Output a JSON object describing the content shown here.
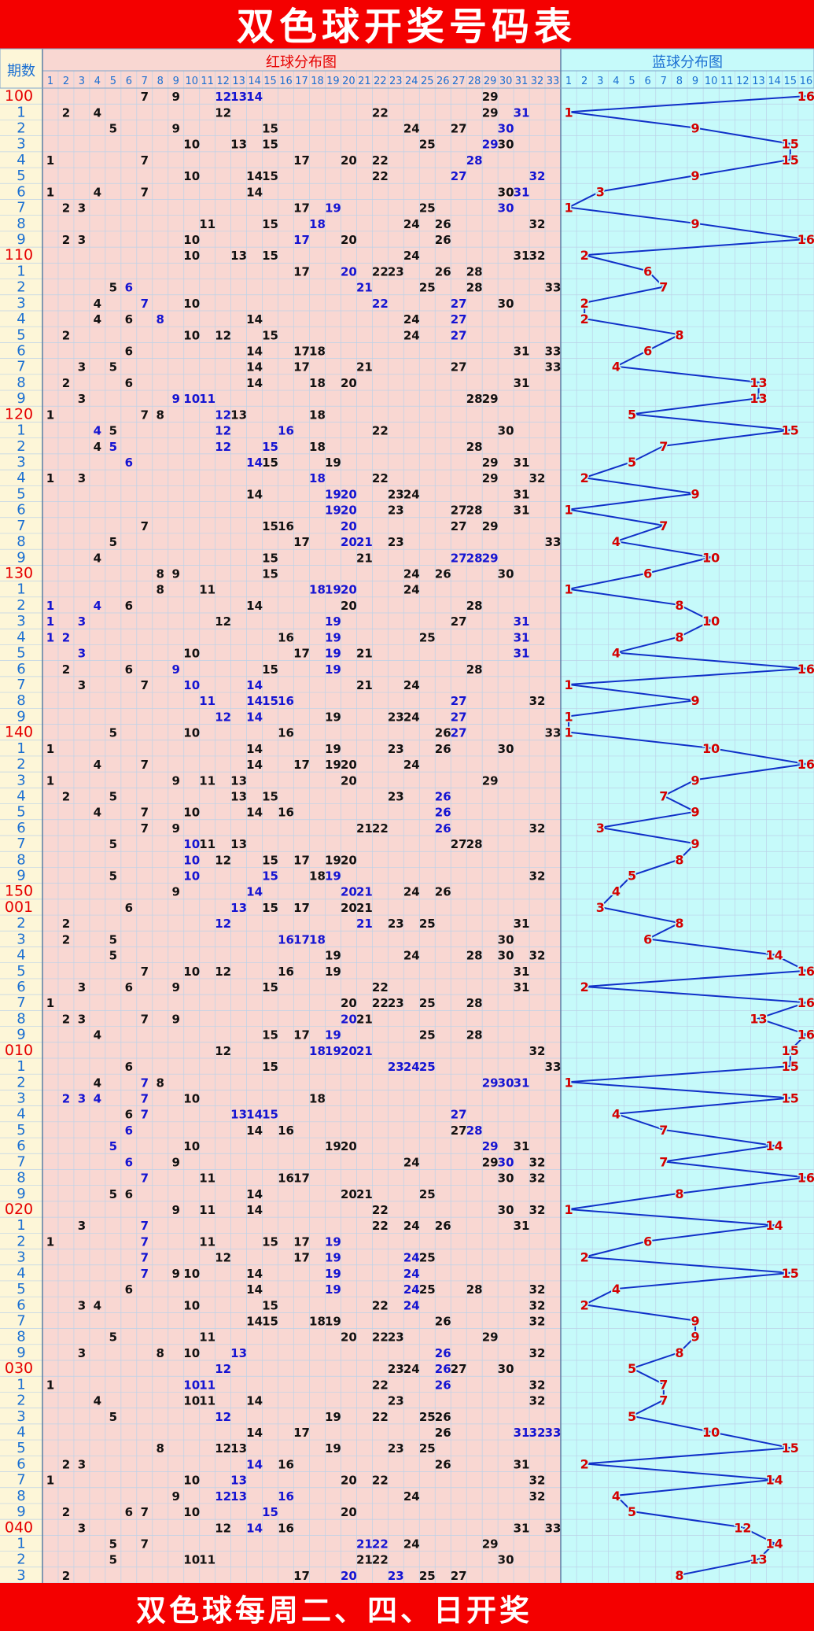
{
  "title": "双色球开奖号码表",
  "footer": "双色球每周二、四、日开奖",
  "header": {
    "period_label": "期数",
    "red_section_label": "红球分布图",
    "blue_section_label": "蓝球分布图"
  },
  "colors": {
    "title_bar": "#f40000",
    "title_text": "#ffffff",
    "red_zone_bg": "#f9d7d2",
    "blue_zone_bg": "#c6fafa",
    "period_col_bg": "#fdf6d8",
    "grid_line": "#bcd2e8",
    "period_full": "#e60000",
    "period_short": "#1a6fd2",
    "red_number": "#111111",
    "repeat_number": "#1414d2",
    "blue_number": "#d40000",
    "blue_line": "#1030c8"
  },
  "red_columns": [
    "1",
    "2",
    "3",
    "4",
    "5",
    "6",
    "7",
    "8",
    "9",
    "10",
    "11",
    "12",
    "13",
    "14",
    "15",
    "16",
    "17",
    "18",
    "19",
    "20",
    "21",
    "22",
    "23",
    "24",
    "25",
    "26",
    "27",
    "28",
    "29",
    "30",
    "31",
    "32",
    "33"
  ],
  "blue_columns": [
    "1",
    "2",
    "3",
    "4",
    "5",
    "6",
    "7",
    "8",
    "9",
    "10",
    "11",
    "12",
    "13",
    "14",
    "15",
    "16"
  ],
  "draws": [
    {
      "period": "100",
      "red": [
        7,
        9,
        12,
        13,
        14,
        29
      ],
      "repeat": [
        12,
        13,
        14
      ],
      "blue": 16
    },
    {
      "period": "1",
      "red": [
        2,
        4,
        12,
        22,
        29,
        31
      ],
      "repeat": [
        31
      ],
      "blue": 1
    },
    {
      "period": "2",
      "red": [
        5,
        9,
        15,
        24,
        27,
        30
      ],
      "repeat": [
        30
      ],
      "blue": 9
    },
    {
      "period": "3",
      "red": [
        10,
        13,
        15,
        25,
        29,
        30
      ],
      "repeat": [
        29
      ],
      "blue": 15
    },
    {
      "period": "4",
      "red": [
        1,
        7,
        17,
        20,
        22,
        28
      ],
      "repeat": [
        28
      ],
      "blue": 15
    },
    {
      "period": "5",
      "red": [
        10,
        14,
        15,
        22,
        27,
        32
      ],
      "repeat": [
        27,
        32
      ],
      "blue": 9
    },
    {
      "period": "6",
      "red": [
        1,
        4,
        7,
        14,
        30,
        31
      ],
      "repeat": [
        31
      ],
      "blue": 3
    },
    {
      "period": "7",
      "red": [
        2,
        3,
        17,
        19,
        25,
        30
      ],
      "repeat": [
        19,
        30
      ],
      "blue": 1
    },
    {
      "period": "8",
      "red": [
        11,
        15,
        18,
        24,
        26,
        32
      ],
      "repeat": [
        18
      ],
      "blue": 9
    },
    {
      "period": "9",
      "red": [
        2,
        3,
        10,
        17,
        20,
        26
      ],
      "repeat": [
        17
      ],
      "blue": 16
    },
    {
      "period": "110",
      "red": [
        10,
        13,
        15,
        24,
        31,
        32
      ],
      "repeat": [],
      "blue": 2
    },
    {
      "period": "1",
      "red": [
        17,
        20,
        22,
        23,
        26,
        28
      ],
      "repeat": [
        20
      ],
      "blue": 6
    },
    {
      "period": "2",
      "red": [
        5,
        6,
        21,
        25,
        28,
        33
      ],
      "repeat": [
        6,
        21
      ],
      "blue": 7
    },
    {
      "period": "3",
      "red": [
        4,
        7,
        10,
        22,
        27,
        30
      ],
      "repeat": [
        7,
        22,
        27
      ],
      "blue": 2
    },
    {
      "period": "4",
      "red": [
        4,
        6,
        8,
        14,
        24,
        27
      ],
      "repeat": [
        8,
        27
      ],
      "blue": 2
    },
    {
      "period": "5",
      "red": [
        2,
        10,
        12,
        15,
        24,
        27
      ],
      "repeat": [
        27
      ],
      "blue": 8
    },
    {
      "period": "6",
      "red": [
        6,
        14,
        17,
        18,
        31,
        33
      ],
      "repeat": [],
      "blue": 6
    },
    {
      "period": "7",
      "red": [
        3,
        5,
        14,
        17,
        21,
        27,
        33
      ],
      "repeat": [],
      "blue": 4
    },
    {
      "period": "8",
      "red": [
        2,
        6,
        14,
        18,
        20,
        31
      ],
      "repeat": [],
      "blue": 13
    },
    {
      "period": "9",
      "red": [
        3,
        9,
        10,
        11,
        28,
        29
      ],
      "repeat": [
        9,
        10,
        11
      ],
      "blue": 13
    },
    {
      "period": "120",
      "red": [
        1,
        7,
        8,
        12,
        13,
        18
      ],
      "repeat": [
        12
      ],
      "blue": 5
    },
    {
      "period": "1",
      "red": [
        4,
        5,
        12,
        16,
        22,
        30
      ],
      "repeat": [
        4,
        12,
        16
      ],
      "blue": 15
    },
    {
      "period": "2",
      "red": [
        4,
        5,
        12,
        15,
        18,
        28
      ],
      "repeat": [
        5,
        12,
        15
      ],
      "blue": 7
    },
    {
      "period": "3",
      "red": [
        6,
        14,
        15,
        19,
        29,
        31
      ],
      "repeat": [
        6,
        14
      ],
      "blue": 5
    },
    {
      "period": "4",
      "red": [
        1,
        3,
        18,
        22,
        29,
        32
      ],
      "repeat": [
        18
      ],
      "blue": 2
    },
    {
      "period": "5",
      "red": [
        14,
        19,
        20,
        23,
        24,
        31
      ],
      "repeat": [
        19,
        20
      ],
      "blue": 9
    },
    {
      "period": "6",
      "red": [
        19,
        20,
        23,
        27,
        28,
        31
      ],
      "repeat": [
        19,
        20
      ],
      "blue": 1
    },
    {
      "period": "7",
      "red": [
        7,
        15,
        16,
        20,
        27,
        29
      ],
      "repeat": [
        20
      ],
      "blue": 7
    },
    {
      "period": "8",
      "red": [
        5,
        17,
        20,
        21,
        23,
        33
      ],
      "repeat": [
        20,
        21
      ],
      "blue": 4
    },
    {
      "period": "9",
      "red": [
        4,
        15,
        21,
        27,
        28,
        29
      ],
      "repeat": [
        27,
        28,
        29
      ],
      "blue": 10
    },
    {
      "period": "130",
      "red": [
        8,
        9,
        15,
        24,
        26,
        30
      ],
      "repeat": [],
      "blue": 6
    },
    {
      "period": "1",
      "red": [
        8,
        11,
        18,
        19,
        20,
        24
      ],
      "repeat": [
        18,
        19,
        20
      ],
      "blue": 1
    },
    {
      "period": "2",
      "red": [
        1,
        4,
        6,
        14,
        20,
        28
      ],
      "repeat": [
        1,
        4
      ],
      "blue": 8
    },
    {
      "period": "3",
      "red": [
        1,
        3,
        12,
        19,
        27,
        31
      ],
      "repeat": [
        1,
        3,
        19,
        31
      ],
      "blue": 10
    },
    {
      "period": "4",
      "red": [
        1,
        2,
        16,
        19,
        25,
        31
      ],
      "repeat": [
        1,
        2,
        19,
        31
      ],
      "blue": 8
    },
    {
      "period": "5",
      "red": [
        3,
        10,
        17,
        19,
        21,
        31
      ],
      "repeat": [
        3,
        19,
        31
      ],
      "blue": 4
    },
    {
      "period": "6",
      "red": [
        2,
        6,
        9,
        15,
        19,
        28
      ],
      "repeat": [
        9,
        19
      ],
      "blue": 16
    },
    {
      "period": "7",
      "red": [
        3,
        7,
        10,
        14,
        21,
        24
      ],
      "repeat": [
        10,
        14
      ],
      "blue": 1
    },
    {
      "period": "8",
      "red": [
        11,
        14,
        15,
        16,
        27,
        32
      ],
      "repeat": [
        11,
        14,
        15,
        16,
        27
      ],
      "blue": 9
    },
    {
      "period": "9",
      "red": [
        12,
        14,
        19,
        23,
        24,
        27
      ],
      "repeat": [
        12,
        14,
        27
      ],
      "blue": 1
    },
    {
      "period": "140",
      "red": [
        5,
        10,
        16,
        26,
        27,
        33
      ],
      "repeat": [
        27
      ],
      "blue": 1
    },
    {
      "period": "1",
      "red": [
        1,
        14,
        19,
        23,
        26,
        30
      ],
      "repeat": [],
      "blue": 10
    },
    {
      "period": "2",
      "red": [
        4,
        7,
        14,
        17,
        19,
        20,
        24
      ],
      "repeat": [],
      "blue": 16
    },
    {
      "period": "3",
      "red": [
        1,
        9,
        11,
        13,
        20,
        29
      ],
      "repeat": [],
      "blue": 9
    },
    {
      "period": "4",
      "red": [
        2,
        5,
        13,
        15,
        23,
        26
      ],
      "repeat": [
        26
      ],
      "blue": 7
    },
    {
      "period": "5",
      "red": [
        4,
        7,
        10,
        14,
        16,
        26
      ],
      "repeat": [
        26
      ],
      "blue": 9
    },
    {
      "period": "6",
      "red": [
        7,
        9,
        21,
        22,
        26,
        32
      ],
      "repeat": [
        26
      ],
      "blue": 3
    },
    {
      "period": "7",
      "red": [
        5,
        10,
        11,
        13,
        27,
        28
      ],
      "repeat": [
        10
      ],
      "blue": 9
    },
    {
      "period": "8",
      "red": [
        10,
        12,
        15,
        17,
        19,
        20
      ],
      "repeat": [
        10
      ],
      "blue": 8
    },
    {
      "period": "9",
      "red": [
        5,
        10,
        15,
        18,
        19,
        32
      ],
      "repeat": [
        10,
        15,
        19
      ],
      "blue": 5
    },
    {
      "period": "150",
      "red": [
        9,
        14,
        20,
        21,
        24,
        26
      ],
      "repeat": [
        14,
        20,
        21
      ],
      "blue": 4
    },
    {
      "period": "001",
      "red": [
        6,
        13,
        15,
        17,
        20,
        21
      ],
      "repeat": [
        13
      ],
      "blue": 3
    },
    {
      "period": "2",
      "red": [
        2,
        12,
        21,
        23,
        25,
        31
      ],
      "repeat": [
        12,
        21
      ],
      "blue": 8
    },
    {
      "period": "3",
      "red": [
        2,
        5,
        16,
        17,
        18,
        30
      ],
      "repeat": [
        16,
        17,
        18
      ],
      "blue": 6
    },
    {
      "period": "4",
      "red": [
        5,
        19,
        24,
        28,
        30,
        32
      ],
      "repeat": [],
      "blue": 14
    },
    {
      "period": "5",
      "red": [
        7,
        10,
        12,
        16,
        19,
        31
      ],
      "repeat": [],
      "blue": 16
    },
    {
      "period": "6",
      "red": [
        3,
        6,
        9,
        15,
        22,
        31
      ],
      "repeat": [],
      "blue": 2
    },
    {
      "period": "7",
      "red": [
        1,
        20,
        22,
        23,
        25,
        28
      ],
      "repeat": [],
      "blue": 16
    },
    {
      "period": "8",
      "red": [
        2,
        3,
        7,
        9,
        20,
        21
      ],
      "repeat": [
        20
      ],
      "blue": 13
    },
    {
      "period": "9",
      "red": [
        4,
        15,
        17,
        19,
        25,
        28
      ],
      "repeat": [
        19
      ],
      "blue": 16
    },
    {
      "period": "010",
      "red": [
        12,
        18,
        19,
        20,
        21,
        32
      ],
      "repeat": [
        18,
        19,
        20,
        21
      ],
      "blue": 15
    },
    {
      "period": "1",
      "red": [
        6,
        15,
        23,
        24,
        25,
        33
      ],
      "repeat": [
        23,
        24,
        25
      ],
      "blue": 15
    },
    {
      "period": "2",
      "red": [
        4,
        7,
        8,
        29,
        30,
        31
      ],
      "repeat": [
        7,
        29,
        30,
        31
      ],
      "blue": 1
    },
    {
      "period": "3",
      "red": [
        2,
        3,
        4,
        7,
        10,
        18
      ],
      "repeat": [
        2,
        3,
        4,
        7
      ],
      "blue": 15
    },
    {
      "period": "4",
      "red": [
        6,
        7,
        13,
        14,
        15,
        27
      ],
      "repeat": [
        7,
        13,
        14,
        15,
        27
      ],
      "blue": 4
    },
    {
      "period": "5",
      "red": [
        6,
        14,
        16,
        27,
        28
      ],
      "repeat": [
        6,
        28
      ],
      "blue": 7
    },
    {
      "period": "6",
      "red": [
        5,
        10,
        19,
        20,
        29,
        31
      ],
      "repeat": [
        5,
        29
      ],
      "blue": 14
    },
    {
      "period": "7",
      "red": [
        6,
        9,
        24,
        29,
        30,
        32
      ],
      "repeat": [
        6,
        30
      ],
      "blue": 7
    },
    {
      "period": "8",
      "red": [
        7,
        11,
        16,
        17,
        30,
        32
      ],
      "repeat": [
        7
      ],
      "blue": 16
    },
    {
      "period": "9",
      "red": [
        5,
        6,
        14,
        20,
        21,
        25
      ],
      "repeat": [],
      "blue": 8
    },
    {
      "period": "020",
      "red": [
        9,
        11,
        14,
        22,
        30,
        32
      ],
      "repeat": [],
      "blue": 1
    },
    {
      "period": "1",
      "red": [
        3,
        7,
        22,
        24,
        26,
        31
      ],
      "repeat": [
        7
      ],
      "blue": 14
    },
    {
      "period": "2",
      "red": [
        1,
        7,
        11,
        15,
        17,
        19
      ],
      "repeat": [
        7,
        19
      ],
      "blue": 6
    },
    {
      "period": "3",
      "red": [
        7,
        12,
        17,
        19,
        24,
        25
      ],
      "repeat": [
        7,
        19,
        24
      ],
      "blue": 2
    },
    {
      "period": "4",
      "red": [
        7,
        9,
        10,
        14,
        19,
        24
      ],
      "repeat": [
        7,
        19,
        24
      ],
      "blue": 15
    },
    {
      "period": "5",
      "red": [
        6,
        14,
        19,
        24,
        25,
        28,
        32
      ],
      "repeat": [
        19,
        24
      ],
      "blue": 4
    },
    {
      "period": "6",
      "red": [
        3,
        4,
        10,
        15,
        22,
        24,
        32
      ],
      "repeat": [
        24
      ],
      "blue": 2
    },
    {
      "period": "7",
      "red": [
        14,
        15,
        18,
        19,
        26,
        32
      ],
      "repeat": [],
      "blue": 9
    },
    {
      "period": "8",
      "red": [
        5,
        11,
        20,
        22,
        23,
        29
      ],
      "repeat": [],
      "blue": 9
    },
    {
      "period": "9",
      "red": [
        3,
        8,
        10,
        13,
        26,
        32
      ],
      "repeat": [
        13,
        26
      ],
      "blue": 8
    },
    {
      "period": "030",
      "red": [
        12,
        23,
        24,
        26,
        27,
        30
      ],
      "repeat": [
        12,
        26
      ],
      "blue": 5
    },
    {
      "period": "1",
      "red": [
        1,
        10,
        11,
        22,
        26,
        32
      ],
      "repeat": [
        10,
        11,
        26
      ],
      "blue": 7
    },
    {
      "period": "2",
      "red": [
        4,
        10,
        11,
        14,
        23,
        32
      ],
      "repeat": [],
      "blue": 7
    },
    {
      "period": "3",
      "red": [
        5,
        12,
        19,
        22,
        25,
        26
      ],
      "repeat": [
        12
      ],
      "blue": 5
    },
    {
      "period": "4",
      "red": [
        14,
        17,
        26,
        31,
        32,
        33
      ],
      "repeat": [
        31,
        32,
        33
      ],
      "blue": 10
    },
    {
      "period": "5",
      "red": [
        8,
        12,
        13,
        19,
        23,
        25
      ],
      "repeat": [],
      "blue": 15
    },
    {
      "period": "6",
      "red": [
        2,
        3,
        14,
        16,
        26,
        31
      ],
      "repeat": [
        14
      ],
      "blue": 2
    },
    {
      "period": "7",
      "red": [
        1,
        10,
        13,
        20,
        22,
        32
      ],
      "repeat": [
        13
      ],
      "blue": 14
    },
    {
      "period": "8",
      "red": [
        9,
        12,
        13,
        16,
        24,
        32
      ],
      "repeat": [
        12,
        13,
        16
      ],
      "blue": 4
    },
    {
      "period": "9",
      "red": [
        2,
        6,
        7,
        10,
        15,
        20
      ],
      "repeat": [
        15
      ],
      "blue": 5
    },
    {
      "period": "040",
      "red": [
        3,
        12,
        14,
        16,
        31,
        33
      ],
      "repeat": [
        14
      ],
      "blue": 12
    },
    {
      "period": "1",
      "red": [
        5,
        7,
        21,
        22,
        24,
        29
      ],
      "repeat": [
        21,
        22
      ],
      "blue": 14
    },
    {
      "period": "2",
      "red": [
        5,
        10,
        11,
        21,
        22,
        30
      ],
      "repeat": [],
      "blue": 13
    },
    {
      "period": "3",
      "red": [
        2,
        17,
        20,
        23,
        25,
        27
      ],
      "repeat": [
        20,
        23
      ],
      "blue": 8
    }
  ]
}
